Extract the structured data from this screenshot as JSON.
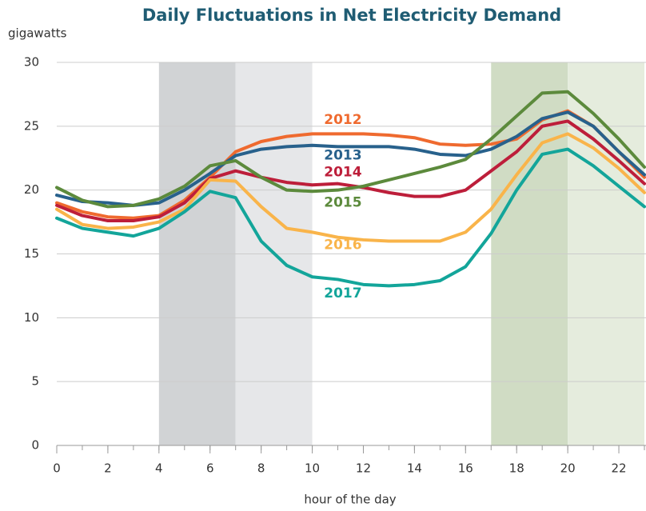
{
  "chart_data": {
    "type": "line",
    "title": "Daily Fluctuations in Net Electricity Demand",
    "ylabel": "gigawatts",
    "xlabel": "hour of the day",
    "x": [
      0,
      1,
      2,
      3,
      4,
      5,
      6,
      7,
      8,
      9,
      10,
      11,
      12,
      13,
      14,
      15,
      16,
      17,
      18,
      19,
      20,
      21,
      22,
      23
    ],
    "xlim": [
      0,
      23
    ],
    "xticks": [
      0,
      2,
      4,
      6,
      8,
      10,
      12,
      14,
      16,
      18,
      20,
      22
    ],
    "ylim": [
      0,
      30
    ],
    "yticks": [
      0,
      5,
      10,
      15,
      20,
      25,
      30
    ],
    "grid": true,
    "shaded_regions": [
      {
        "from": 4,
        "to": 7,
        "color": "#d1d3d5"
      },
      {
        "from": 7,
        "to": 10,
        "color": "#e6e7e9"
      },
      {
        "from": 17,
        "to": 20,
        "color": "#d0dcc4"
      },
      {
        "from": 20,
        "to": 23,
        "color": "#e5ecdd"
      }
    ],
    "series": [
      {
        "name": "2012",
        "color": "#ef6a2f",
        "values": [
          19.0,
          18.3,
          17.9,
          17.8,
          18.0,
          19.2,
          21.0,
          23.0,
          23.8,
          24.2,
          24.4,
          24.4,
          24.4,
          24.3,
          24.1,
          23.6,
          23.5,
          23.6,
          24.0,
          25.5,
          26.2,
          25.0,
          23.0,
          21.0
        ]
      },
      {
        "name": "2013",
        "color": "#28618c",
        "values": [
          19.6,
          19.1,
          19.0,
          18.8,
          19.0,
          20.0,
          21.3,
          22.7,
          23.2,
          23.4,
          23.5,
          23.4,
          23.4,
          23.4,
          23.2,
          22.8,
          22.7,
          23.2,
          24.2,
          25.6,
          26.1,
          25.0,
          23.0,
          21.2
        ]
      },
      {
        "name": "2014",
        "color": "#bd1e3a",
        "values": [
          18.8,
          18.0,
          17.6,
          17.6,
          17.9,
          19.0,
          20.9,
          21.5,
          21.0,
          20.6,
          20.4,
          20.5,
          20.2,
          19.8,
          19.5,
          19.5,
          20.0,
          21.5,
          23.0,
          25.0,
          25.4,
          24.0,
          22.3,
          20.5
        ]
      },
      {
        "name": "2015",
        "color": "#5c8a3c",
        "values": [
          20.2,
          19.2,
          18.7,
          18.8,
          19.3,
          20.3,
          21.9,
          22.3,
          21.0,
          20.0,
          19.9,
          20.0,
          20.3,
          20.8,
          21.3,
          21.8,
          22.4,
          24.0,
          25.8,
          27.6,
          27.7,
          26.0,
          24.0,
          21.8
        ]
      },
      {
        "name": "2016",
        "color": "#f9b44a",
        "values": [
          18.5,
          17.3,
          17.0,
          17.1,
          17.5,
          18.5,
          20.8,
          20.7,
          18.7,
          17.0,
          16.7,
          16.3,
          16.1,
          16.0,
          16.0,
          16.0,
          16.7,
          18.5,
          21.2,
          23.7,
          24.4,
          23.3,
          21.7,
          19.8
        ]
      },
      {
        "name": "2017",
        "color": "#13a59a",
        "values": [
          17.8,
          17.0,
          16.7,
          16.4,
          17.0,
          18.3,
          19.9,
          19.4,
          16.0,
          14.1,
          13.2,
          13.0,
          12.6,
          12.5,
          12.6,
          12.9,
          14.0,
          16.6,
          20.0,
          22.8,
          23.2,
          21.9,
          20.3,
          18.7
        ]
      }
    ]
  }
}
